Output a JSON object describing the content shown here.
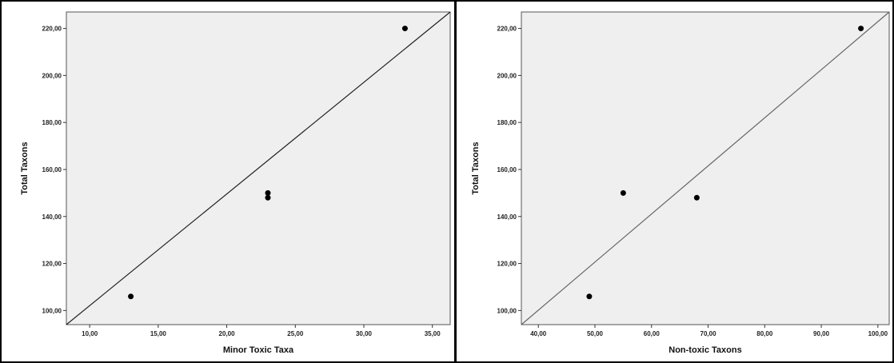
{
  "chart_data": [
    {
      "type": "scatter",
      "title": "",
      "xlabel": "Minor Toxic Taxa",
      "ylabel": "Total Taxons",
      "xlim": [
        8.3,
        36.3
      ],
      "ylim": [
        94,
        227
      ],
      "xticks": [
        10,
        15,
        20,
        25,
        30,
        35
      ],
      "yticks": [
        100,
        120,
        140,
        160,
        180,
        200,
        220
      ],
      "xtick_labels": [
        "10,00",
        "15,00",
        "20,00",
        "25,00",
        "30,00",
        "35,00"
      ],
      "ytick_labels": [
        "100,00",
        "120,00",
        "140,00",
        "160,00",
        "180,00",
        "200,00",
        "220,00"
      ],
      "grid": false,
      "points": [
        {
          "x": 13,
          "y": 106
        },
        {
          "x": 23,
          "y": 150
        },
        {
          "x": 23,
          "y": 148
        },
        {
          "x": 33,
          "y": 220
        }
      ],
      "fit_line": {
        "x": [
          8.3,
          36.3
        ],
        "y": [
          94,
          227
        ],
        "color": "#222222"
      }
    },
    {
      "type": "scatter",
      "title": "",
      "xlabel": "Non-toxic Taxons",
      "ylabel": "Total Taxons",
      "xlim": [
        37,
        102
      ],
      "ylim": [
        94,
        227
      ],
      "xticks": [
        40,
        50,
        60,
        70,
        80,
        90,
        100
      ],
      "yticks": [
        100,
        120,
        140,
        160,
        180,
        200,
        220
      ],
      "xtick_labels": [
        "40,00",
        "50,00",
        "60,00",
        "70,00",
        "80,00",
        "90,00",
        "100,00"
      ],
      "ytick_labels": [
        "100,00",
        "120,00",
        "140,00",
        "160,00",
        "180,00",
        "200,00",
        "220,00"
      ],
      "grid": false,
      "points": [
        {
          "x": 49,
          "y": 106
        },
        {
          "x": 55,
          "y": 150
        },
        {
          "x": 68,
          "y": 148
        },
        {
          "x": 97,
          "y": 220
        }
      ],
      "fit_line": {
        "x": [
          37,
          102
        ],
        "y": [
          94,
          227
        ],
        "color": "#666666"
      }
    }
  ]
}
